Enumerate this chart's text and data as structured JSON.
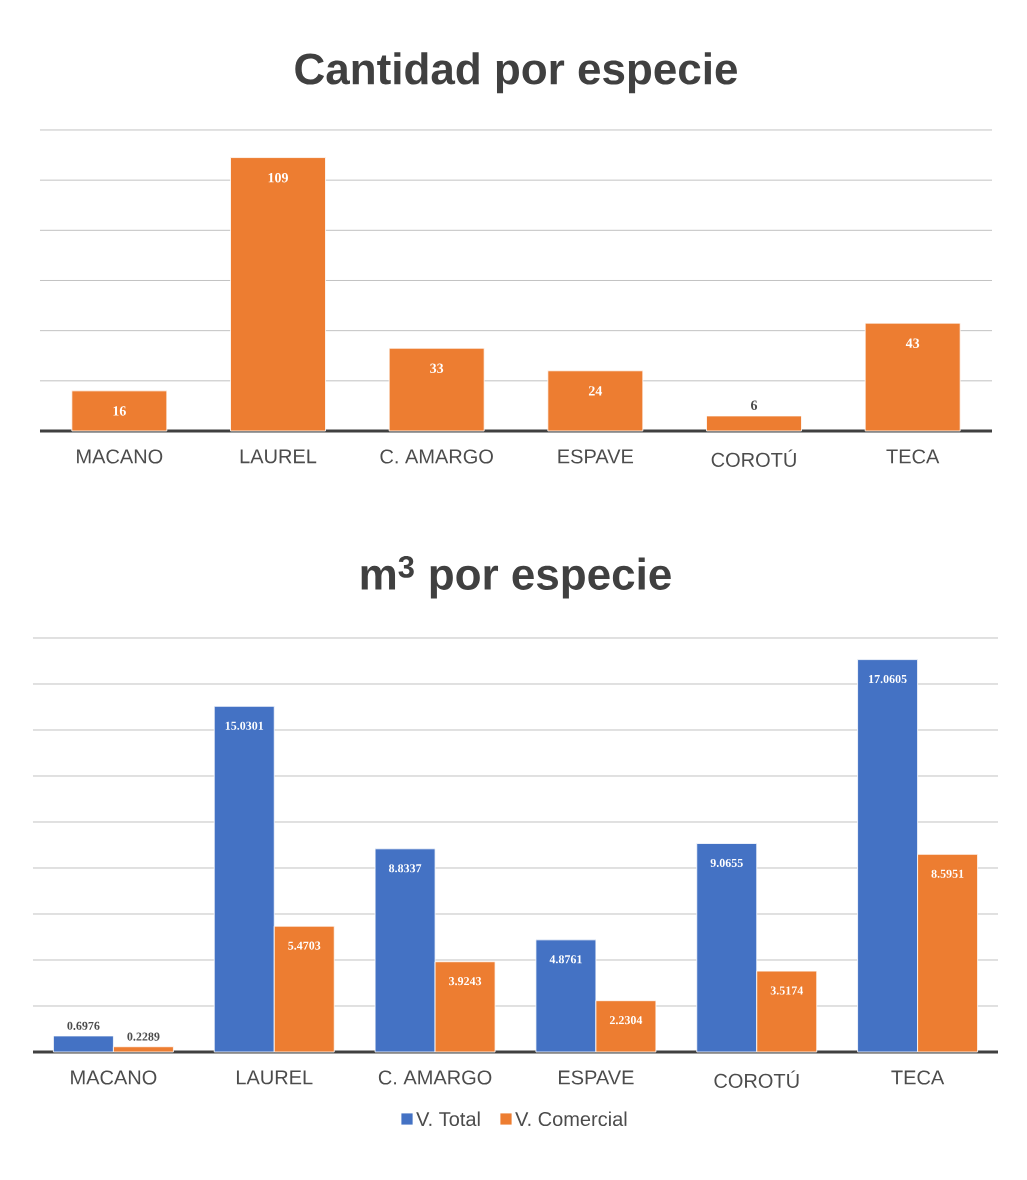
{
  "chart_data": [
    {
      "type": "bar",
      "title": "Cantidad por especie",
      "categories": [
        "MACANO",
        "LAUREL",
        "C. AMARGO",
        "ESPAVE",
        "COROTÚ",
        "TECA"
      ],
      "values": [
        16,
        109,
        33,
        24,
        6,
        43
      ],
      "color": "#ed7d31",
      "ylim": [
        0,
        120
      ],
      "yticks": [
        {
          "value": 0,
          "label": null
        },
        {
          "value": 20,
          "label": null
        },
        {
          "value": 40,
          "label": null
        },
        {
          "value": 60,
          "label": null
        },
        {
          "value": 80,
          "label": null
        },
        {
          "value": 100,
          "label": null
        },
        {
          "value": 120,
          "label": null
        }
      ],
      "grid": "y",
      "data_labels": true
    },
    {
      "type": "bar",
      "title": "m$^{3}$ por especie",
      "categories": [
        "MACANO",
        "LAUREL",
        "C. AMARGO",
        "ESPAVE",
        "COROTÚ",
        "TECA"
      ],
      "series": [
        {
          "name": "V. Total",
          "color": "#4472c4",
          "values": [
            0.6976,
            15.0301,
            8.8337,
            4.8761,
            9.0655,
            17.0605
          ]
        },
        {
          "name": "V. Comercial",
          "color": "#ed7d31",
          "values": [
            0.2289,
            5.4703,
            3.9243,
            2.2304,
            3.5174,
            8.5951
          ]
        }
      ],
      "ylim": [
        0,
        18
      ],
      "yticks": [
        {
          "value": 0,
          "label": null
        },
        {
          "value": 2,
          "label": null
        },
        {
          "value": 4,
          "label": null
        },
        {
          "value": 6,
          "label": null
        },
        {
          "value": 8,
          "label": null
        },
        {
          "value": 10,
          "label": null
        },
        {
          "value": 12,
          "label": null
        },
        {
          "value": 14,
          "label": null
        },
        {
          "value": 16,
          "label": null
        },
        {
          "value": 18,
          "label": null
        }
      ],
      "grid": "y",
      "data_labels": true,
      "legend": "bottom"
    }
  ]
}
